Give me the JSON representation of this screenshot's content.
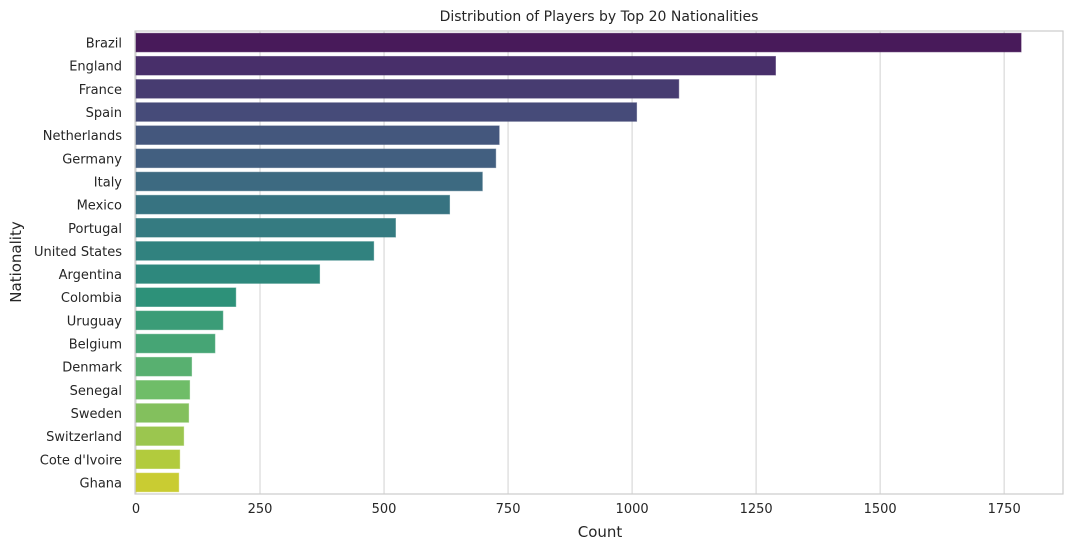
{
  "chart_data": {
    "type": "bar",
    "orientation": "horizontal",
    "title": "Distribution of Players by Top 20 Nationalities",
    "xlabel": "Count",
    "ylabel": "Nationality",
    "xlim": [
      0,
      1870
    ],
    "xticks": [
      0,
      250,
      500,
      750,
      1000,
      1250,
      1500,
      1750
    ],
    "grid": true,
    "categories": [
      "Brazil",
      "England",
      "France",
      "Spain",
      "Netherlands",
      "Germany",
      "Italy",
      "Mexico",
      "Portugal",
      "United States",
      "Argentina",
      "Colombia",
      "Uruguay",
      "Belgium",
      "Denmark",
      "Senegal",
      "Sweden",
      "Switzerland",
      "Cote d'Ivoire",
      "Ghana"
    ],
    "values": [
      1784,
      1289,
      1094,
      1009,
      732,
      725,
      698,
      632,
      523,
      479,
      370,
      201,
      175,
      159,
      112,
      108,
      106,
      96,
      88,
      86
    ],
    "colors": [
      "#481a5a",
      "#482f6a",
      "#473c71",
      "#464b79",
      "#44577d",
      "#425f80",
      "#3d6a81",
      "#377381",
      "#357b81",
      "#31827f",
      "#2e887d",
      "#2d9179",
      "#3b9c77",
      "#46a575",
      "#58b070",
      "#6fbd68",
      "#83c05d",
      "#9bc64f",
      "#b2cb3d",
      "#c9cc32"
    ]
  }
}
